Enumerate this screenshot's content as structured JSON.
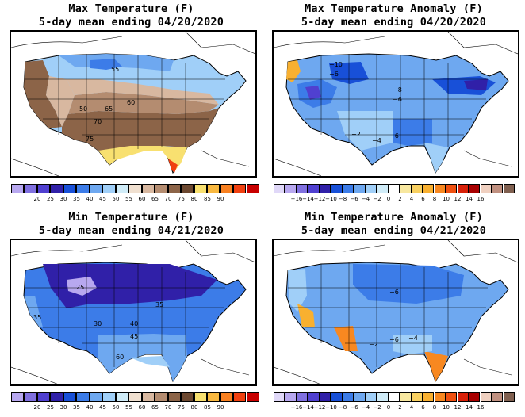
{
  "panels": [
    {
      "id": "max-temp",
      "title": "Max Temperature (F)",
      "subtitle": "5-day mean ending 04/20/2020",
      "colors": [
        "#b8a8f0",
        "#8070e0",
        "#5040d0",
        "#3020a8",
        "#1850d8",
        "#3c7ce8",
        "#6ea8f0",
        "#a0cff8",
        "#d0ecf8",
        "#f0e0d0",
        "#d8b8a0",
        "#b48c70",
        "#8c6448",
        "#6c4830",
        "#f8e070",
        "#f8b840",
        "#f88020",
        "#f04010",
        "#c80000"
      ],
      "tick_labels": [
        "20",
        "25",
        "30",
        "35",
        "40",
        "45",
        "50",
        "55",
        "60",
        "65",
        "70",
        "75",
        "80",
        "85",
        "90"
      ],
      "map_labels": [
        "55",
        "60",
        "50",
        "65",
        "70",
        "75"
      ]
    },
    {
      "id": "max-temp-anomaly",
      "title": "Max Temperature Anomaly (F)",
      "subtitle": "5-day mean ending 04/20/2020",
      "colors": [
        "#e0d8f8",
        "#b8a8f0",
        "#8070e0",
        "#5040d0",
        "#3020a8",
        "#1850d8",
        "#3c7ce8",
        "#6ea8f0",
        "#a0cff8",
        "#d0ecf8",
        "#ffffff",
        "#f8e8a0",
        "#f8d060",
        "#f8b030",
        "#f88820",
        "#f05010",
        "#d82008",
        "#a80000",
        "#f0d0c0",
        "#c09080",
        "#806050"
      ],
      "tick_labels": [
        "−16",
        "−14",
        "−12",
        "−10",
        "−8",
        "−6",
        "−4",
        "−2",
        "0",
        "2",
        "4",
        "6",
        "8",
        "10",
        "12",
        "14",
        "16"
      ],
      "map_labels": [
        "−10",
        "−6",
        "−8",
        "−6",
        "−2",
        "−6",
        "−4"
      ]
    },
    {
      "id": "min-temp",
      "title": "Min Temperature (F)",
      "subtitle": "5-day mean ending 04/21/2020",
      "colors": [
        "#b8a8f0",
        "#8070e0",
        "#5040d0",
        "#3020a8",
        "#1850d8",
        "#3c7ce8",
        "#6ea8f0",
        "#a0cff8",
        "#d0ecf8",
        "#f0e0d0",
        "#d8b8a0",
        "#b48c70",
        "#8c6448",
        "#6c4830",
        "#f8e070",
        "#f8b840",
        "#f88020",
        "#f04010",
        "#c80000"
      ],
      "tick_labels": [
        "20",
        "25",
        "30",
        "35",
        "40",
        "45",
        "50",
        "55",
        "60",
        "65",
        "70",
        "75",
        "80",
        "85",
        "90"
      ],
      "map_labels": [
        "25",
        "35",
        "35",
        "30",
        "40",
        "45",
        "60"
      ]
    },
    {
      "id": "min-temp-anomaly",
      "title": "Min Temperature Anomaly (F)",
      "subtitle": "5-day mean ending 04/21/2020",
      "colors": [
        "#e0d8f8",
        "#b8a8f0",
        "#8070e0",
        "#5040d0",
        "#3020a8",
        "#1850d8",
        "#3c7ce8",
        "#6ea8f0",
        "#a0cff8",
        "#d0ecf8",
        "#ffffff",
        "#f8e8a0",
        "#f8d060",
        "#f8b030",
        "#f88820",
        "#f05010",
        "#d82008",
        "#a80000",
        "#f0d0c0",
        "#c09080",
        "#806050"
      ],
      "tick_labels": [
        "−16",
        "−14",
        "−12",
        "−10",
        "−8",
        "−6",
        "−4",
        "−2",
        "0",
        "2",
        "4",
        "6",
        "8",
        "10",
        "12",
        "14",
        "16"
      ],
      "map_labels": [
        "−6",
        "−6",
        "−4",
        "−2"
      ]
    }
  ]
}
